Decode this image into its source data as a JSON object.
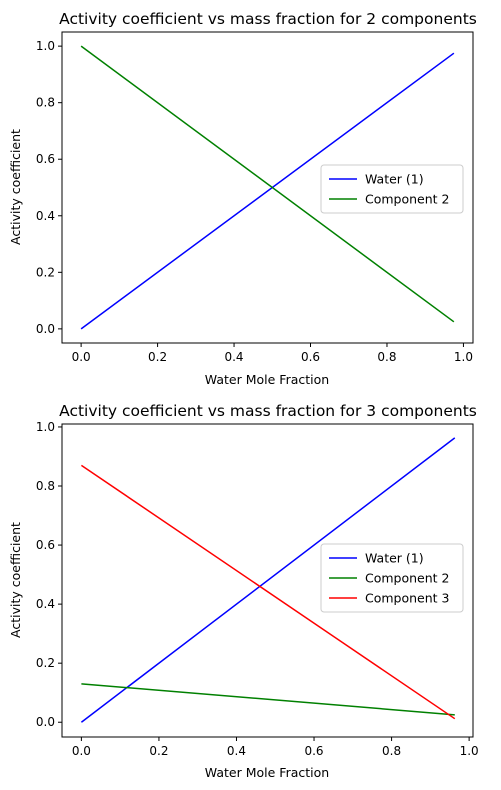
{
  "chart_data": [
    {
      "type": "line",
      "title": "Activity coefficient vs mass fraction for 2 components",
      "xlabel": "Water Mole Fraction",
      "ylabel": "Activity coefficient",
      "xlim": [
        -0.05,
        1.025
      ],
      "ylim": [
        -0.05,
        1.05
      ],
      "xticks": [
        0.0,
        0.2,
        0.4,
        0.6,
        0.8,
        1.0
      ],
      "xtick_labels": [
        "0.0",
        "0.2",
        "0.4",
        "0.6",
        "0.8",
        "1.0"
      ],
      "yticks": [
        0.0,
        0.2,
        0.4,
        0.6,
        0.8,
        1.0
      ],
      "ytick_labels": [
        "0.0",
        "0.2",
        "0.4",
        "0.6",
        "0.8",
        "1.0"
      ],
      "grid": false,
      "legend_position": "center-right",
      "series": [
        {
          "name": "Water (1)",
          "color": "#0000ff",
          "x": [
            0.0,
            0.975
          ],
          "y": [
            0.0,
            0.975
          ]
        },
        {
          "name": "Component 2",
          "color": "#008000",
          "x": [
            0.0,
            0.975
          ],
          "y": [
            1.0,
            0.025
          ]
        }
      ]
    },
    {
      "type": "line",
      "title": "Activity coefficient vs mass fraction for 3 components",
      "xlabel": "Water Mole Fraction",
      "ylabel": "Activity coefficient",
      "xlim": [
        -0.05,
        1.01
      ],
      "ylim": [
        -0.05,
        1.01
      ],
      "xticks": [
        0.0,
        0.2,
        0.4,
        0.6,
        0.8,
        1.0
      ],
      "xtick_labels": [
        "0.0",
        "0.2",
        "0.4",
        "0.6",
        "0.8",
        "1.0"
      ],
      "yticks": [
        0.0,
        0.2,
        0.4,
        0.6,
        0.8,
        1.0
      ],
      "ytick_labels": [
        "0.0",
        "0.2",
        "0.4",
        "0.6",
        "0.8",
        "1.0"
      ],
      "grid": false,
      "legend_position": "center-right",
      "series": [
        {
          "name": "Water (1)",
          "color": "#0000ff",
          "x": [
            0.0,
            0.963
          ],
          "y": [
            0.0,
            0.963
          ]
        },
        {
          "name": "Component 2",
          "color": "#008000",
          "x": [
            0.0,
            0.963
          ],
          "y": [
            0.13,
            0.025
          ]
        },
        {
          "name": "Component 3",
          "color": "#ff0000",
          "x": [
            0.0,
            0.963
          ],
          "y": [
            0.87,
            0.012
          ]
        }
      ]
    }
  ]
}
